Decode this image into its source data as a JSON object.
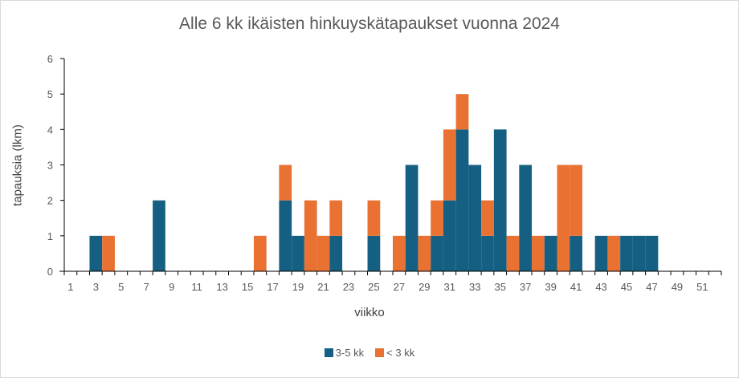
{
  "chart_data": {
    "type": "bar",
    "stacked": true,
    "title": "Alle 6 kk ikäisten hinkuyskätapaukset vuonna 2024",
    "xlabel": "viikko",
    "ylabel": "tapauksia (lkm)",
    "ylim": [
      0,
      6
    ],
    "yticks": [
      0,
      1,
      2,
      3,
      4,
      5,
      6
    ],
    "xticks_labeled": [
      1,
      3,
      5,
      7,
      9,
      11,
      13,
      15,
      17,
      19,
      21,
      23,
      25,
      27,
      29,
      31,
      33,
      35,
      37,
      39,
      41,
      43,
      45,
      47,
      49,
      51
    ],
    "categories": [
      1,
      2,
      3,
      4,
      5,
      6,
      7,
      8,
      9,
      10,
      11,
      12,
      13,
      14,
      15,
      16,
      17,
      18,
      19,
      20,
      21,
      22,
      23,
      24,
      25,
      26,
      27,
      28,
      29,
      30,
      31,
      32,
      33,
      34,
      35,
      36,
      37,
      38,
      39,
      40,
      41,
      42,
      43,
      44,
      45,
      46,
      47,
      48,
      49,
      50,
      51,
      52
    ],
    "series": [
      {
        "name": "3-5 kk",
        "color": "#156082",
        "values": [
          0,
          0,
          1,
          0,
          0,
          0,
          0,
          2,
          0,
          0,
          0,
          0,
          0,
          0,
          0,
          0,
          0,
          2,
          1,
          0,
          0,
          1,
          0,
          0,
          1,
          0,
          0,
          3,
          0,
          1,
          2,
          4,
          3,
          1,
          4,
          0,
          3,
          0,
          1,
          0,
          1,
          0,
          1,
          0,
          1,
          1,
          1,
          0,
          0,
          0,
          0,
          0
        ]
      },
      {
        "name": "< 3 kk",
        "color": "#E97132",
        "values": [
          0,
          0,
          0,
          1,
          0,
          0,
          0,
          0,
          0,
          0,
          0,
          0,
          0,
          0,
          0,
          1,
          0,
          1,
          0,
          2,
          1,
          1,
          0,
          0,
          1,
          0,
          1,
          0,
          1,
          1,
          2,
          1,
          0,
          1,
          0,
          1,
          0,
          1,
          0,
          3,
          2,
          0,
          0,
          1,
          0,
          0,
          0,
          0,
          0,
          0,
          0,
          0
        ]
      }
    ],
    "grid": false,
    "legend_position": "bottom"
  },
  "legend": {
    "items": [
      {
        "label": "3-5 kk",
        "color": "#156082"
      },
      {
        "label": "< 3 kk",
        "color": "#E97132"
      }
    ]
  }
}
